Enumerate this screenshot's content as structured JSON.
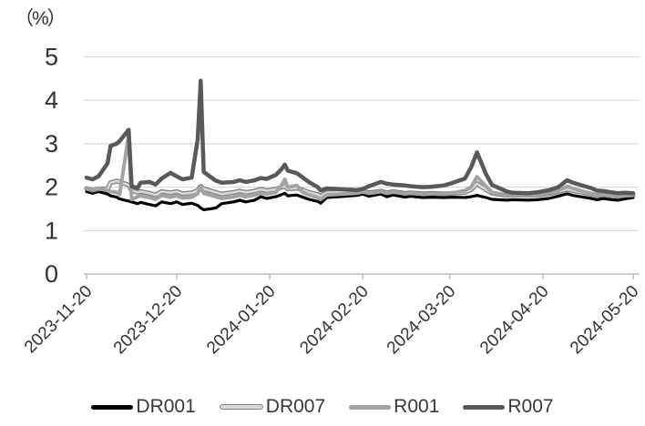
{
  "chart_data": {
    "type": "line",
    "title": "",
    "unit_label": "（%）",
    "xlabel": "",
    "ylabel": "",
    "y_ticks": [
      0,
      1,
      2,
      3,
      4,
      5
    ],
    "ylim": [
      0,
      5
    ],
    "x_range": [
      "2023-11-20",
      "2024-05-20"
    ],
    "x_tick_labels": [
      "2023-11-20",
      "2023-12-20",
      "2024-01-20",
      "2024-02-20",
      "2024-03-20",
      "2024-04-20",
      "2024-05-20"
    ],
    "grid": "horizontal",
    "legend_position": "bottom",
    "colors": {
      "gridline": "#d9d9d9",
      "axis": "#c0c0c0",
      "text": "#333333"
    },
    "dates": [
      "2023-11-20",
      "2023-11-22",
      "2023-11-24",
      "2023-11-27",
      "2023-11-28",
      "2023-11-30",
      "2023-12-01",
      "2023-12-04",
      "2023-12-05",
      "2023-12-07",
      "2023-12-08",
      "2023-12-11",
      "2023-12-13",
      "2023-12-15",
      "2023-12-18",
      "2023-12-20",
      "2023-12-22",
      "2023-12-25",
      "2023-12-27",
      "2023-12-28",
      "2023-12-29",
      "2024-01-02",
      "2024-01-04",
      "2024-01-08",
      "2024-01-10",
      "2024-01-12",
      "2024-01-15",
      "2024-01-17",
      "2024-01-19",
      "2024-01-22",
      "2024-01-24",
      "2024-01-25",
      "2024-01-26",
      "2024-01-29",
      "2024-01-31",
      "2024-02-02",
      "2024-02-05",
      "2024-02-06",
      "2024-02-08",
      "2024-02-18",
      "2024-02-20",
      "2024-02-22",
      "2024-02-26",
      "2024-02-28",
      "2024-03-01",
      "2024-03-05",
      "2024-03-07",
      "2024-03-11",
      "2024-03-14",
      "2024-03-18",
      "2024-03-21",
      "2024-03-25",
      "2024-03-27",
      "2024-03-29",
      "2024-04-01",
      "2024-04-03",
      "2024-04-08",
      "2024-04-10",
      "2024-04-15",
      "2024-04-18",
      "2024-04-22",
      "2024-04-25",
      "2024-04-28",
      "2024-04-30",
      "2024-05-06",
      "2024-05-08",
      "2024-05-10",
      "2024-05-13",
      "2024-05-15",
      "2024-05-17",
      "2024-05-20"
    ],
    "series": [
      {
        "name": "DR001",
        "color": "#000000",
        "width": 3.2,
        "values": [
          1.9,
          1.86,
          1.9,
          1.84,
          1.8,
          1.77,
          1.73,
          1.68,
          1.66,
          1.62,
          1.65,
          1.6,
          1.57,
          1.66,
          1.62,
          1.66,
          1.6,
          1.63,
          1.58,
          1.52,
          1.48,
          1.52,
          1.62,
          1.66,
          1.7,
          1.66,
          1.7,
          1.78,
          1.74,
          1.78,
          1.83,
          1.86,
          1.8,
          1.82,
          1.77,
          1.72,
          1.67,
          1.63,
          1.76,
          1.81,
          1.84,
          1.79,
          1.84,
          1.78,
          1.82,
          1.77,
          1.79,
          1.76,
          1.77,
          1.76,
          1.77,
          1.76,
          1.78,
          1.81,
          1.76,
          1.72,
          1.7,
          1.71,
          1.7,
          1.71,
          1.74,
          1.79,
          1.85,
          1.81,
          1.74,
          1.71,
          1.74,
          1.71,
          1.7,
          1.73,
          1.76
        ]
      },
      {
        "name": "DR007",
        "color": "#d9d9d9",
        "outline": "#808080",
        "width": 2.6,
        "values": [
          1.97,
          1.93,
          1.96,
          1.96,
          2.1,
          2.14,
          2.12,
          2.05,
          1.92,
          1.88,
          1.9,
          1.86,
          1.82,
          1.9,
          1.87,
          1.9,
          1.85,
          1.87,
          1.92,
          2.02,
          1.96,
          1.88,
          1.84,
          1.88,
          1.91,
          1.88,
          1.91,
          1.95,
          1.92,
          1.95,
          2.0,
          2.02,
          1.96,
          1.98,
          1.93,
          1.88,
          1.83,
          1.79,
          1.87,
          1.9,
          1.91,
          1.87,
          1.91,
          1.87,
          1.9,
          1.86,
          1.87,
          1.85,
          1.86,
          1.85,
          1.86,
          1.88,
          1.94,
          2.08,
          1.94,
          1.86,
          1.81,
          1.82,
          1.81,
          1.82,
          1.85,
          1.89,
          1.95,
          1.92,
          1.84,
          1.81,
          1.82,
          1.8,
          1.79,
          1.81,
          1.82
        ]
      },
      {
        "name": "R001",
        "color": "#a3a3a3",
        "width": 4.0,
        "values": [
          1.98,
          1.94,
          1.97,
          1.92,
          1.9,
          1.88,
          1.83,
          3.2,
          1.72,
          1.78,
          1.8,
          1.76,
          1.72,
          1.81,
          1.77,
          1.8,
          1.75,
          1.77,
          1.85,
          2.0,
          1.86,
          1.78,
          1.74,
          1.78,
          1.81,
          1.78,
          1.82,
          1.86,
          1.84,
          1.88,
          2.05,
          2.18,
          2.0,
          2.04,
          1.88,
          1.82,
          1.76,
          1.72,
          1.82,
          1.86,
          1.89,
          1.86,
          1.9,
          1.86,
          1.89,
          1.85,
          1.86,
          1.84,
          1.85,
          1.85,
          1.87,
          1.92,
          2.0,
          2.24,
          2.02,
          1.88,
          1.81,
          1.82,
          1.81,
          1.83,
          1.86,
          1.91,
          2.02,
          1.97,
          1.85,
          1.81,
          1.83,
          1.8,
          1.79,
          1.81,
          1.83
        ]
      },
      {
        "name": "R007",
        "color": "#595959",
        "width": 4.5,
        "values": [
          2.22,
          2.18,
          2.25,
          2.55,
          2.95,
          3.0,
          3.06,
          3.32,
          2.02,
          1.98,
          2.1,
          2.12,
          2.06,
          2.2,
          2.33,
          2.25,
          2.18,
          2.22,
          3.1,
          4.45,
          2.35,
          2.15,
          2.1,
          2.12,
          2.16,
          2.12,
          2.16,
          2.21,
          2.19,
          2.28,
          2.42,
          2.52,
          2.38,
          2.32,
          2.22,
          2.12,
          2.0,
          1.92,
          1.97,
          1.93,
          1.96,
          2.02,
          2.12,
          2.08,
          2.06,
          2.04,
          2.02,
          2.0,
          2.01,
          2.04,
          2.1,
          2.2,
          2.45,
          2.8,
          2.3,
          2.05,
          1.9,
          1.87,
          1.86,
          1.88,
          1.93,
          2.0,
          2.16,
          2.1,
          1.98,
          1.92,
          1.91,
          1.88,
          1.86,
          1.87,
          1.86
        ]
      }
    ]
  }
}
